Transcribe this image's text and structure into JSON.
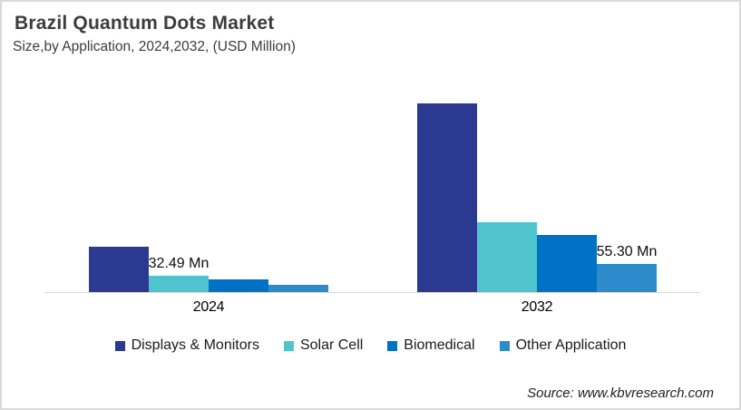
{
  "header": {
    "title": "Brazil Quantum Dots Market",
    "subtitle": "Size,by Application, 2024,2032, (USD Million)"
  },
  "source_text": "Source: www.kbvresearch.com",
  "colors": {
    "displays_monitors": "#2B3990",
    "solar_cell": "#4FC4CF",
    "biomedical": "#0072C6",
    "other_application": "#2E8BCB",
    "axis_line": "#d9d9d9",
    "card_border": "#d9d9d9",
    "title_text": "#3c3c3c"
  },
  "chart_data": {
    "type": "bar",
    "title": "Brazil Quantum Dots Market",
    "subtitle": "Size,by Application, 2024,2032, (USD Million)",
    "unit": "USD Million",
    "categories": [
      "2024",
      "2032"
    ],
    "series": [
      {
        "name": "Displays & Monitors",
        "color": "#2B3990",
        "values": [
          89,
          370
        ]
      },
      {
        "name": "Solar Cell",
        "color": "#4FC4CF",
        "values": [
          32.49,
          138
        ]
      },
      {
        "name": "Biomedical",
        "color": "#0072C6",
        "values": [
          25,
          113
        ]
      },
      {
        "name": "Other Application",
        "color": "#2E8BCB",
        "values": [
          13.5,
          55.3
        ]
      }
    ],
    "data_labels": [
      {
        "category": "2024",
        "series": "Solar Cell",
        "text": "32.49 Mn"
      },
      {
        "category": "2032",
        "series": "Other Application",
        "text": "55.30 Mn"
      }
    ],
    "ylim": [
      0,
      410
    ],
    "grid": false,
    "y_axis_visible": false,
    "x_axis_line": true,
    "legend_position": "bottom"
  }
}
